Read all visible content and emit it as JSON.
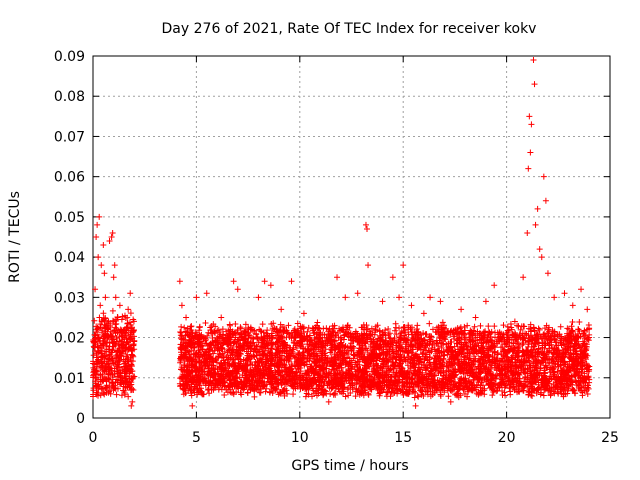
{
  "chart_data": {
    "type": "scatter",
    "title": "Day 276 of 2021, Rate Of TEC Index for receiver kokv",
    "xlabel": "GPS time / hours",
    "ylabel": "ROTI / TECUs",
    "xlim": [
      0,
      25
    ],
    "ylim": [
      0,
      0.09
    ],
    "xticks": [
      "0",
      "5",
      "10",
      "15",
      "20",
      "25"
    ],
    "yticks": [
      "0",
      "0.01",
      "0.02",
      "0.03",
      "0.04",
      "0.05",
      "0.06",
      "0.07",
      "0.08",
      "0.09"
    ],
    "grid": true,
    "marker": "plus",
    "color": "#ff0000",
    "series": [
      {
        "name": "",
        "points": [
          [
            0.05,
            0.012
          ],
          [
            0.1,
            0.032
          ],
          [
            0.15,
            0.045
          ],
          [
            0.2,
            0.048
          ],
          [
            0.25,
            0.04
          ],
          [
            0.3,
            0.05
          ],
          [
            0.35,
            0.028
          ],
          [
            0.4,
            0.038
          ],
          [
            0.5,
            0.043
          ],
          [
            0.55,
            0.036
          ],
          [
            0.6,
            0.03
          ],
          [
            0.7,
            0.022
          ],
          [
            0.8,
            0.044
          ],
          [
            0.9,
            0.045
          ],
          [
            0.95,
            0.046
          ],
          [
            1.0,
            0.035
          ],
          [
            1.05,
            0.038
          ],
          [
            1.1,
            0.03
          ],
          [
            1.2,
            0.025
          ],
          [
            1.3,
            0.028
          ],
          [
            1.5,
            0.02
          ],
          [
            1.7,
            0.027
          ],
          [
            1.8,
            0.031
          ],
          [
            1.85,
            0.003
          ],
          [
            1.9,
            0.004
          ],
          [
            4.2,
            0.034
          ],
          [
            4.3,
            0.028
          ],
          [
            4.5,
            0.025
          ],
          [
            4.8,
            0.003
          ],
          [
            5.0,
            0.03
          ],
          [
            5.5,
            0.031
          ],
          [
            6.2,
            0.025
          ],
          [
            6.8,
            0.034
          ],
          [
            7.0,
            0.032
          ],
          [
            8.0,
            0.03
          ],
          [
            8.3,
            0.034
          ],
          [
            8.6,
            0.033
          ],
          [
            9.1,
            0.027
          ],
          [
            9.6,
            0.034
          ],
          [
            10.2,
            0.026
          ],
          [
            11.0,
            0.02
          ],
          [
            11.4,
            0.004
          ],
          [
            11.8,
            0.035
          ],
          [
            12.2,
            0.03
          ],
          [
            12.8,
            0.031
          ],
          [
            13.2,
            0.048
          ],
          [
            13.25,
            0.047
          ],
          [
            13.3,
            0.038
          ],
          [
            14.0,
            0.029
          ],
          [
            14.5,
            0.035
          ],
          [
            14.8,
            0.03
          ],
          [
            15.0,
            0.038
          ],
          [
            15.4,
            0.028
          ],
          [
            15.6,
            0.003
          ],
          [
            16.0,
            0.026
          ],
          [
            16.3,
            0.03
          ],
          [
            16.8,
            0.029
          ],
          [
            17.3,
            0.004
          ],
          [
            17.8,
            0.027
          ],
          [
            18.5,
            0.025
          ],
          [
            19.0,
            0.029
          ],
          [
            19.4,
            0.033
          ],
          [
            19.8,
            0.02
          ],
          [
            20.4,
            0.024
          ],
          [
            20.8,
            0.035
          ],
          [
            21.0,
            0.046
          ],
          [
            21.05,
            0.062
          ],
          [
            21.1,
            0.075
          ],
          [
            21.15,
            0.066
          ],
          [
            21.2,
            0.073
          ],
          [
            21.3,
            0.089
          ],
          [
            21.35,
            0.083
          ],
          [
            21.4,
            0.048
          ],
          [
            21.5,
            0.052
          ],
          [
            21.6,
            0.042
          ],
          [
            21.7,
            0.04
          ],
          [
            21.8,
            0.06
          ],
          [
            21.9,
            0.054
          ],
          [
            22.0,
            0.036
          ],
          [
            22.3,
            0.03
          ],
          [
            22.8,
            0.031
          ],
          [
            23.2,
            0.028
          ],
          [
            23.6,
            0.032
          ],
          [
            23.9,
            0.027
          ]
        ],
        "band_segments": [
          {
            "x": [
              0.0,
              2.0
            ],
            "ylow": 0.007,
            "yhigh": 0.025
          },
          {
            "x": [
              4.2,
              24.0
            ],
            "ylow": 0.007,
            "yhigh": 0.022
          }
        ]
      }
    ]
  }
}
